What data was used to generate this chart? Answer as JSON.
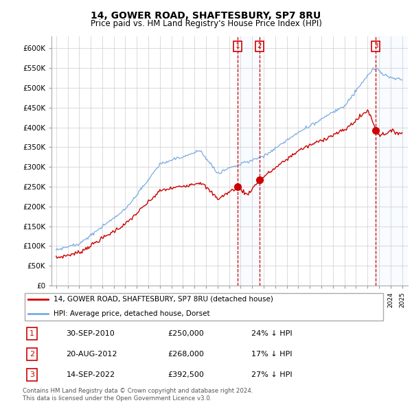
{
  "title": "14, GOWER ROAD, SHAFTESBURY, SP7 8RU",
  "subtitle": "Price paid vs. HM Land Registry's House Price Index (HPI)",
  "legend_line1": "14, GOWER ROAD, SHAFTESBURY, SP7 8RU (detached house)",
  "legend_line2": "HPI: Average price, detached house, Dorset",
  "transactions": [
    {
      "num": 1,
      "date": "30-SEP-2010",
      "price": 250000,
      "pct": "24% ↓ HPI",
      "x": 2010.75
    },
    {
      "num": 2,
      "date": "20-AUG-2012",
      "price": 268000,
      "pct": "17% ↓ HPI",
      "x": 2012.63
    },
    {
      "num": 3,
      "date": "14-SEP-2022",
      "price": 392500,
      "pct": "27% ↓ HPI",
      "x": 2022.71
    }
  ],
  "copyright": "Contains HM Land Registry data © Crown copyright and database right 2024.\nThis data is licensed under the Open Government Licence v3.0.",
  "hpi_color": "#7aabe0",
  "price_color": "#cc0000",
  "shade_color": "#ddeeff",
  "grid_color": "#cccccc",
  "background_color": "#ffffff"
}
